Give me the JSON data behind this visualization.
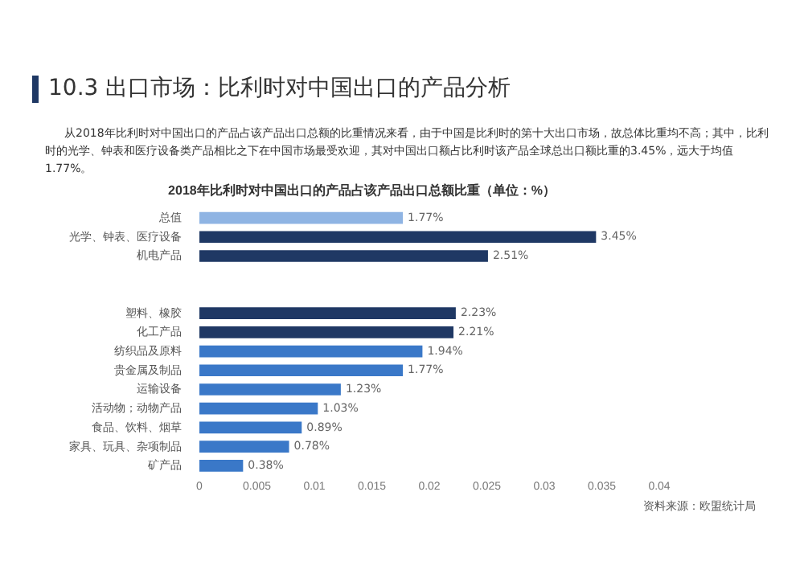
{
  "chart_data": {
    "type": "bar",
    "orientation": "horizontal",
    "title": "10.3 出口市场：比利时对中国出口的产品分析",
    "subtitle": "2018年比利时对中国出口的产品占该产品出口总额比重（单位：%）",
    "annotations": [
      "从2018年比利时对中国出口的产品占该产品出口总额的比重情况来看，由于中国是比利时的第十大出口市场，故总体比重均不高；其中，比利时的光学、钟表和医疗设备类产品相比之下在中国市场最受欢迎，其对中国出口额占比利时该产品全球总出口额比重的3.45%，远大于均值1.77%。",
      "资料来源：欧盟统计局"
    ],
    "categories": [
      "总值",
      "光学、钟表、医疗设备",
      "机电产品",
      null,
      null,
      "塑料、橡胶",
      "化工产品",
      "纺织品及原料",
      "贵金属及制品",
      "运输设备",
      "活动物；动物产品",
      "食品、饮料、烟草",
      "家具、玩具、杂项制品",
      "矿产品"
    ],
    "values": [
      0.0177,
      0.0345,
      0.0251,
      null,
      null,
      0.0223,
      0.0221,
      0.0194,
      0.0177,
      0.0123,
      0.0103,
      0.0089,
      0.0078,
      0.0038
    ],
    "value_labels": [
      "1.77%",
      "3.45%",
      "2.51%",
      null,
      null,
      "2.23%",
      "2.21%",
      "1.94%",
      "1.77%",
      "1.23%",
      "1.03%",
      "0.89%",
      "0.78%",
      "0.38%"
    ],
    "colors": [
      "#8fb4e3",
      "#1f3864",
      "#1f3864",
      "#1f3864",
      "#1f3864",
      "#1f3864",
      "#1f3864",
      "#3a78c8",
      "#3a78c8",
      "#3a78c8",
      "#3a78c8",
      "#3a78c8",
      "#3a78c8",
      "#3a78c8"
    ],
    "xlim": [
      0,
      0.04
    ],
    "xticks": [
      0,
      0.005,
      0.01,
      0.015,
      0.02,
      0.025,
      0.03,
      0.035,
      0.04
    ],
    "grid": false,
    "legend": false
  }
}
